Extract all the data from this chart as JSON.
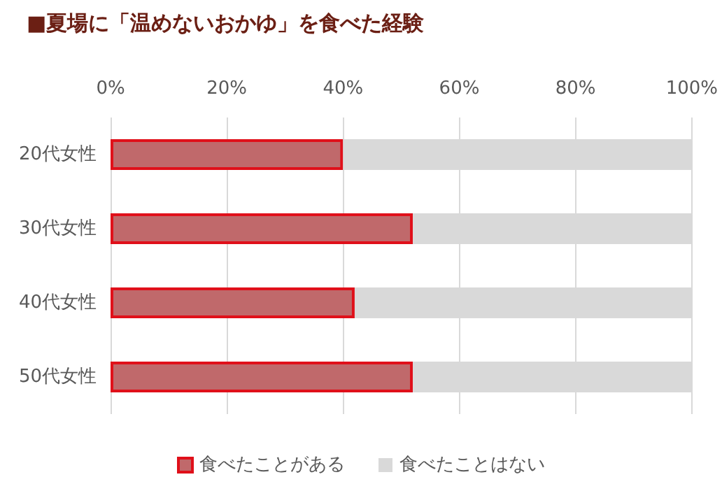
{
  "chart_data": {
    "type": "bar",
    "orientation": "horizontal",
    "stacked": true,
    "title": "■夏場に「温めないおかゆ」を食べた経験",
    "categories": [
      "20代女性",
      "30代女性",
      "40代女性",
      "50代女性"
    ],
    "series": [
      {
        "name": "食べたことがある",
        "color": "#c0696b",
        "values": [
          40,
          52,
          42,
          52
        ]
      },
      {
        "name": "食べたことはない",
        "color": "#d9d9d9",
        "values": [
          60,
          48,
          58,
          48
        ]
      }
    ],
    "xlim": [
      0,
      100
    ],
    "xticks": [
      {
        "value": 0,
        "label": "0%"
      },
      {
        "value": 20,
        "label": "20%"
      },
      {
        "value": 40,
        "label": "40%"
      },
      {
        "value": 60,
        "label": "60%"
      },
      {
        "value": 80,
        "label": "80%"
      },
      {
        "value": 100,
        "label": "100%"
      }
    ],
    "grid": "x",
    "legend": "bottom"
  }
}
